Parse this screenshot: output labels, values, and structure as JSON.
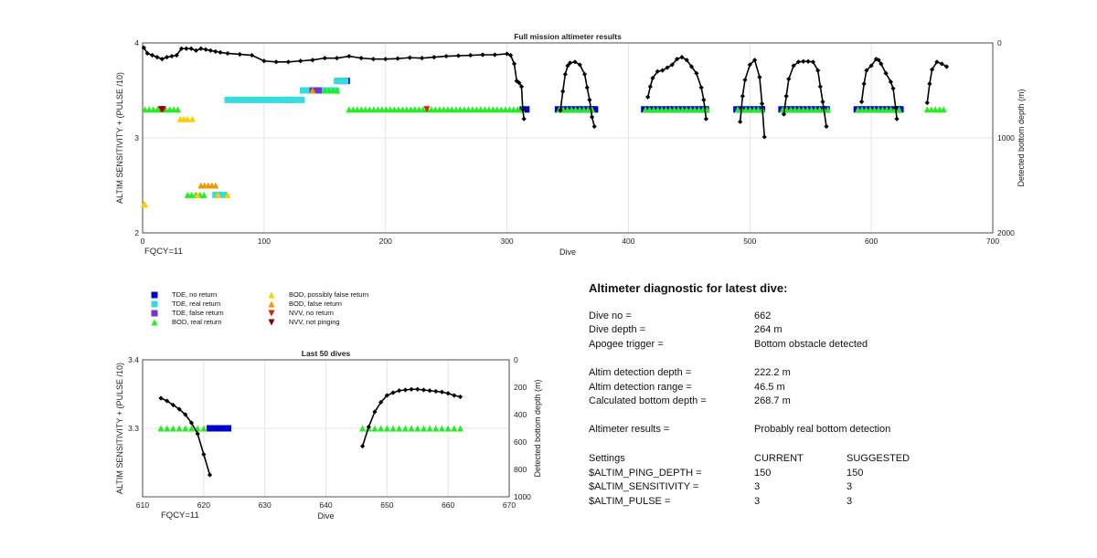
{
  "chart_data": [
    {
      "type": "scatter",
      "title": "Full mission altimeter results",
      "xlabel": "Dive",
      "ylabel": "ALTIM SENSITIVITY + (PULSE /10)",
      "y2label": "Detected bottom depth (m)",
      "xlim": [
        0,
        700
      ],
      "ylim": [
        2,
        4
      ],
      "y2lim": [
        2000,
        0
      ],
      "xticks": [
        0,
        100,
        200,
        300,
        400,
        500,
        600,
        700
      ],
      "yticks": [
        2,
        3,
        4
      ],
      "y2ticks": [
        0,
        1000,
        2000
      ],
      "corner_text": "FQCY=11",
      "grid": true,
      "bottom_depth": [
        {
          "x": [
            1,
            4,
            8,
            12,
            16,
            20,
            24,
            28,
            32,
            36,
            40,
            44,
            48,
            52,
            56,
            60,
            64,
            70,
            80,
            90,
            100,
            110,
            120,
            130,
            140,
            150,
            160,
            170,
            180,
            190,
            200,
            210,
            220,
            230,
            240,
            250,
            260,
            270,
            280,
            290,
            300,
            303,
            306,
            308,
            310,
            312,
            313,
            314
          ],
          "y": [
            50,
            110,
            130,
            150,
            170,
            150,
            140,
            130,
            60,
            60,
            60,
            80,
            60,
            70,
            80,
            90,
            100,
            110,
            120,
            130,
            190,
            200,
            200,
            190,
            180,
            160,
            160,
            140,
            160,
            170,
            170,
            165,
            155,
            160,
            150,
            140,
            135,
            130,
            125,
            125,
            115,
            130,
            220,
            400,
            420,
            460,
            700,
            800
          ]
        },
        {
          "x": [
            344,
            346,
            348,
            350,
            352,
            356,
            360,
            364,
            366,
            368,
            370,
            372
          ],
          "y": [
            710,
            510,
            330,
            240,
            210,
            200,
            230,
            330,
            470,
            600,
            780,
            880
          ]
        },
        {
          "x": [
            416,
            418,
            420,
            424,
            428,
            432,
            436,
            440,
            444,
            448,
            452,
            456,
            460,
            462,
            464
          ],
          "y": [
            570,
            460,
            370,
            300,
            290,
            260,
            230,
            170,
            150,
            180,
            250,
            320,
            470,
            600,
            800
          ]
        },
        {
          "x": [
            492,
            494,
            496,
            500,
            504,
            508,
            510,
            512
          ],
          "y": [
            830,
            560,
            390,
            230,
            180,
            360,
            640,
            990
          ]
        },
        {
          "x": [
            528,
            530,
            532,
            536,
            540,
            544,
            548,
            552,
            556,
            558,
            560,
            563
          ],
          "y": [
            750,
            560,
            380,
            240,
            200,
            195,
            195,
            200,
            290,
            460,
            620,
            880
          ]
        },
        {
          "x": [
            592,
            594,
            596,
            600,
            604,
            606,
            608,
            612,
            616,
            618,
            620,
            621
          ],
          "y": [
            620,
            430,
            290,
            240,
            170,
            180,
            220,
            320,
            410,
            480,
            680,
            800
          ]
        },
        {
          "x": [
            646,
            648,
            650,
            654,
            658,
            662
          ],
          "y": [
            630,
            430,
            280,
            200,
            220,
            250
          ]
        }
      ],
      "series": [
        {
          "name": "TDE, no return",
          "color": "#0000cc",
          "marker": "square",
          "points": [
            [
              120,
              3.4
            ],
            [
              162,
              3.6
            ],
            [
              165,
              3.6
            ],
            [
              168,
              3.6
            ],
            [
              313,
              3.3
            ],
            [
              316,
              3.3
            ],
            [
              369,
              3.3
            ],
            [
              371,
              3.3
            ],
            [
              460,
              3.3
            ],
            [
              463,
              3.3
            ],
            [
              510,
              3.3
            ],
            [
              563,
              3.3
            ],
            [
              621,
              3.3
            ],
            [
              623,
              3.3
            ],
            [
              624,
              3.3
            ]
          ],
          "segments": [
            [
              342,
              3.3,
              373,
              3.3
            ],
            [
              413,
              3.3,
              465,
              3.3
            ],
            [
              489,
              3.3,
              512,
              3.3
            ],
            [
              526,
              3.3,
              565,
              3.3
            ],
            [
              588,
              3.3,
              625,
              3.3
            ]
          ]
        },
        {
          "name": "TDE, real return",
          "color": "#33dddd",
          "marker": "square",
          "segments": [
            [
              70,
              3.4,
              132,
              3.4
            ],
            [
              132,
              3.5,
              160,
              3.5
            ],
            [
              160,
              3.6,
              170,
              3.6
            ],
            [
              60,
              2.4,
              70,
              2.4
            ]
          ]
        },
        {
          "name": "TDE, false return",
          "color": "#7733cc",
          "marker": "square",
          "points": [
            [
              140,
              3.5
            ],
            [
              145,
              3.5
            ]
          ]
        },
        {
          "name": "BOD, real return",
          "color": "#22ee22",
          "marker": "triangle-up",
          "segments": [
            [
              2,
              3.3,
              30,
              3.3
            ],
            [
              170,
              3.3,
              315,
              3.3
            ],
            [
              343,
              3.3,
              372,
              3.3
            ],
            [
              414,
              3.3,
              465,
              3.3
            ],
            [
              490,
              3.3,
              512,
              3.3
            ],
            [
              527,
              3.3,
              565,
              3.3
            ],
            [
              589,
              3.3,
              624,
              3.3
            ],
            [
              646,
              3.3,
              662,
              3.3
            ],
            [
              37,
              2.4,
              52,
              2.4
            ],
            [
              150,
              3.5,
              162,
              3.5
            ]
          ]
        },
        {
          "name": "BOD, possibly false return",
          "color": "#ffcc00",
          "marker": "triangle-up",
          "points": [
            [
              1,
              2.3
            ],
            [
              2,
              2.3
            ],
            [
              31,
              3.2
            ],
            [
              34,
              3.2
            ],
            [
              37,
              3.2
            ],
            [
              41,
              3.2
            ],
            [
              45,
              2.4
            ],
            [
              62,
              2.4
            ],
            [
              70,
              2.4
            ]
          ]
        },
        {
          "name": "BOD, false return",
          "color": "#ee9900",
          "marker": "triangle-up",
          "points": [
            [
              48,
              2.5
            ],
            [
              51,
              2.5
            ],
            [
              54,
              2.5
            ],
            [
              57,
              2.5
            ],
            [
              60,
              2.5
            ],
            [
              140,
              3.5
            ]
          ]
        },
        {
          "name": "NVV, no return",
          "color": "#dd2200",
          "marker": "triangle-down",
          "points": [
            [
              15,
              3.3
            ],
            [
              17,
              3.3
            ],
            [
              234,
              3.3
            ]
          ]
        },
        {
          "name": "NVV, not pinging",
          "color": "#880000",
          "marker": "triangle-down",
          "points": [
            [
              16,
              3.3
            ]
          ]
        }
      ]
    },
    {
      "type": "scatter",
      "title": "Last 50 dives",
      "xlabel": "Dive",
      "ylabel": "ALTIM SENSITIVITY + (PULSE /10)",
      "y2label": "Detected bottom depth (m)",
      "xlim": [
        610,
        670
      ],
      "ylim": [
        3.2,
        3.4
      ],
      "y2lim": [
        1000,
        0
      ],
      "xticks": [
        610,
        620,
        630,
        640,
        650,
        660,
        670
      ],
      "yticks": [
        3.3,
        3.4
      ],
      "y2ticks": [
        0,
        200,
        400,
        600,
        800,
        1000
      ],
      "corner_text": "FQCY=11",
      "grid": true,
      "bottom_depth": [
        {
          "x": [
            613,
            614,
            615,
            616,
            617,
            618,
            619,
            620,
            621
          ],
          "y": [
            280,
            300,
            330,
            360,
            400,
            460,
            540,
            690,
            840
          ]
        },
        {
          "x": [
            646,
            647,
            648,
            649,
            650,
            651,
            652,
            653,
            654,
            655,
            656,
            657,
            658,
            659,
            660,
            661,
            662
          ],
          "y": [
            630,
            490,
            380,
            310,
            260,
            240,
            225,
            220,
            215,
            215,
            220,
            225,
            230,
            235,
            245,
            260,
            270
          ]
        }
      ],
      "series": [
        {
          "name": "BOD, real return",
          "color": "#22ee22",
          "marker": "triangle-up",
          "x": [
            613,
            614,
            615,
            616,
            617,
            618,
            619,
            620,
            646,
            647,
            648,
            649,
            650,
            651,
            652,
            653,
            654,
            655,
            656,
            657,
            658,
            659,
            660,
            661,
            662
          ],
          "y": [
            3.3,
            3.3,
            3.3,
            3.3,
            3.3,
            3.3,
            3.3,
            3.3,
            3.3,
            3.3,
            3.3,
            3.3,
            3.3,
            3.3,
            3.3,
            3.3,
            3.3,
            3.3,
            3.3,
            3.3,
            3.3,
            3.3,
            3.3,
            3.3,
            3.3
          ]
        },
        {
          "name": "TDE, no return",
          "color": "#0000cc",
          "marker": "square",
          "x": [
            621,
            622,
            623,
            624
          ],
          "y": [
            3.3,
            3.3,
            3.3,
            3.3
          ]
        }
      ]
    }
  ],
  "legend": [
    {
      "label": "TDE, no return",
      "color": "#0000cc",
      "marker": "square"
    },
    {
      "label": "TDE, real return",
      "color": "#33dddd",
      "marker": "square"
    },
    {
      "label": "TDE, false return",
      "color": "#7733cc",
      "marker": "square"
    },
    {
      "label": "BOD, real return",
      "color": "#22ee22",
      "marker": "triangle-up"
    },
    {
      "label": "BOD, possibly false return",
      "color": "#ffcc00",
      "marker": "triangle-up"
    },
    {
      "label": "BOD, false return",
      "color": "#ee9900",
      "marker": "triangle-up"
    },
    {
      "label": "NVV, no return",
      "color": "#dd2200",
      "marker": "triangle-down"
    },
    {
      "label": "NVV, not pinging",
      "color": "#880000",
      "marker": "triangle-down"
    }
  ],
  "diagnostic": {
    "title": "Altimeter diagnostic for latest dive:",
    "rows": [
      {
        "label": "Dive no =",
        "value": "662"
      },
      {
        "label": "Dive depth =",
        "value": "264 m"
      },
      {
        "label": "Apogee trigger =",
        "value": "Bottom obstacle detected"
      },
      {
        "label": "Altim detection depth =",
        "value": "222.2 m"
      },
      {
        "label": "Altim detection range =",
        "value": "46.5 m"
      },
      {
        "label": "Calculated bottom depth =",
        "value": "268.7 m"
      },
      {
        "label": "Altimeter results =",
        "value": "Probably real bottom detection"
      }
    ],
    "settings_header": {
      "label": "Settings",
      "current": "CURRENT",
      "suggested": "SUGGESTED"
    },
    "settings": [
      {
        "label": "$ALTIM_PING_DEPTH =",
        "current": "150",
        "suggested": "150"
      },
      {
        "label": "$ALTIM_SENSITIVITY =",
        "current": "3",
        "suggested": "3"
      },
      {
        "label": "$ALTIM_PULSE =",
        "current": "3",
        "suggested": "3"
      }
    ]
  },
  "colors": {
    "depth_line": "#000000",
    "left_axis_label": "#1a1ab0",
    "grid": "#e4e4e4",
    "corner_text": "#999999"
  }
}
